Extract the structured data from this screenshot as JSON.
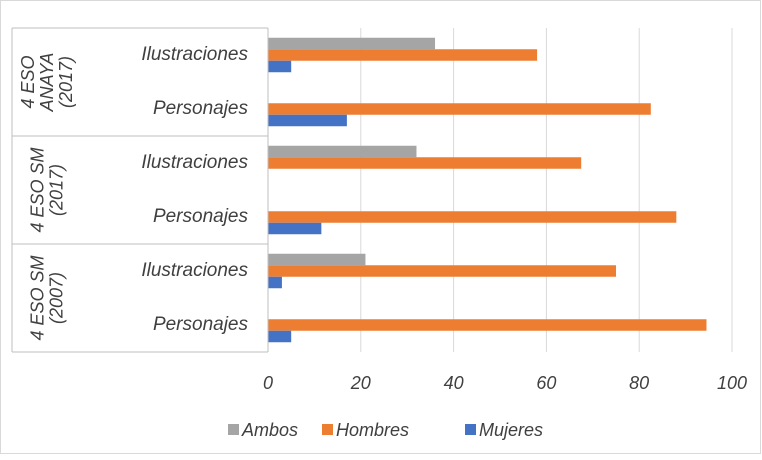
{
  "chart_data": {
    "type": "bar",
    "orientation": "horizontal",
    "groups": [
      {
        "lines": [
          "4 ESO",
          "ANAYA",
          "(2017)"
        ],
        "span": [
          0,
          1
        ]
      },
      {
        "lines": [
          "4 ESO SM",
          "(2017)"
        ],
        "span": [
          2,
          3
        ]
      },
      {
        "lines": [
          "4 ESO SM",
          "(2007)"
        ],
        "span": [
          4,
          5
        ]
      }
    ],
    "categories": [
      "Ilustraciones",
      "Personajes",
      "Ilustraciones",
      "Personajes",
      "Ilustraciones",
      "Personajes"
    ],
    "series": [
      {
        "name": "Ambos",
        "color": "#a5a5a5",
        "values": [
          36,
          null,
          32,
          null,
          21,
          null
        ]
      },
      {
        "name": "Hombres",
        "color": "#ed7d31",
        "values": [
          58,
          82.5,
          67.5,
          88,
          75,
          94.5
        ]
      },
      {
        "name": "Mujeres",
        "color": "#4472c4",
        "values": [
          5,
          17,
          null,
          11.5,
          3,
          5
        ]
      }
    ],
    "xlim": [
      0,
      100
    ],
    "xticks": [
      0,
      20,
      40,
      60,
      80,
      100
    ],
    "grid": true,
    "legend": "bottom"
  }
}
